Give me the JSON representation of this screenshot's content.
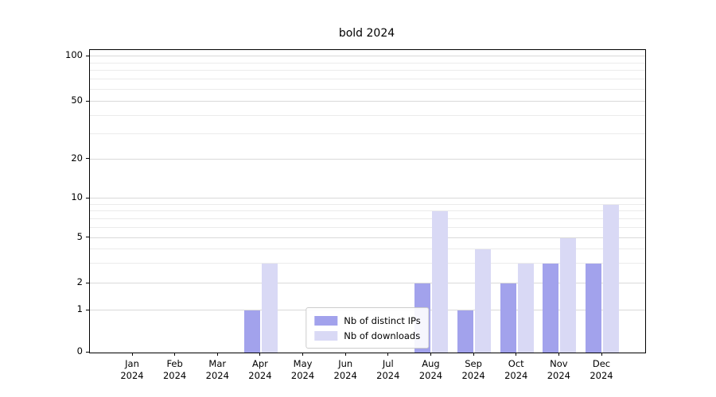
{
  "title": "bold 2024",
  "chart_data": {
    "type": "bar",
    "title": "bold 2024",
    "categories": [
      "Jan 2024",
      "Feb 2024",
      "Mar 2024",
      "Apr 2024",
      "May 2024",
      "Jun 2024",
      "Jul 2024",
      "Aug 2024",
      "Sep 2024",
      "Oct 2024",
      "Nov 2024",
      "Dec 2024"
    ],
    "series": [
      {
        "name": "Nb of distinct IPs",
        "color": "#a2a2ec",
        "values": [
          0,
          0,
          0,
          1,
          0,
          0,
          0,
          2,
          1,
          2,
          3,
          3
        ]
      },
      {
        "name": "Nb of downloads",
        "color": "#d9d9f5",
        "values": [
          0,
          0,
          0,
          3,
          0,
          0,
          0,
          8,
          4,
          3,
          5,
          9
        ]
      }
    ],
    "y_ticks": [
      0,
      1,
      2,
      5,
      10,
      20,
      50,
      100
    ],
    "y_scale": "symlog",
    "ylim": [
      0,
      110
    ],
    "xlabel": "",
    "ylabel": "",
    "grid": "horizontal",
    "legend_position": "lower center inside"
  },
  "legend": {
    "items": [
      {
        "label": "Nb of distinct IPs",
        "color": "#a2a2ec"
      },
      {
        "label": "Nb of downloads",
        "color": "#d9d9f5"
      }
    ]
  }
}
